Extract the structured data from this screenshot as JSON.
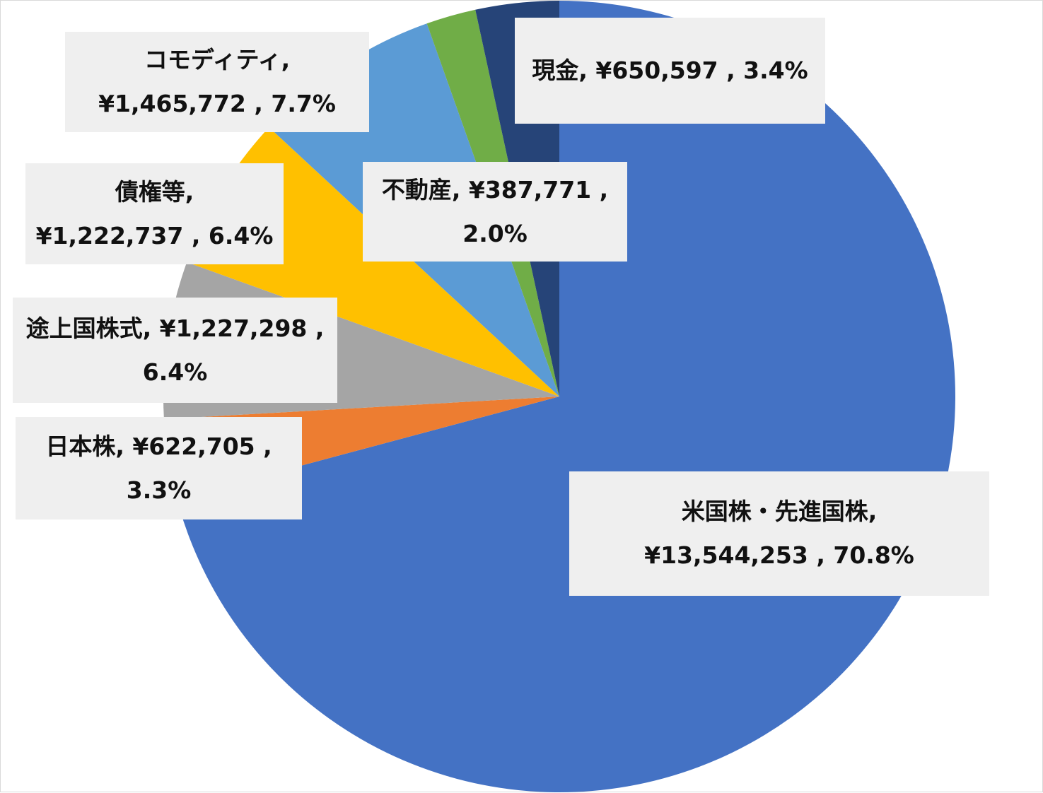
{
  "chart_data": {
    "type": "pie",
    "title": "",
    "legend": "none",
    "slices": [
      {
        "category": "米国株・先進国株",
        "value": 13544253,
        "percent": "70.8%",
        "line1": "米国株・先進国株,",
        "line2": "¥13,544,253 , 70.8%",
        "color": "#4472C4"
      },
      {
        "category": "日本株",
        "value": 622705,
        "percent": "3.3%",
        "line1": "日本株, ¥622,705 ,",
        "line2": "3.3%",
        "color": "#ED7D31"
      },
      {
        "category": "途上国株式",
        "value": 1227298,
        "percent": "6.4%",
        "line1": "途上国株式, ¥1,227,298 ,",
        "line2": "6.4%",
        "color": "#A5A5A5"
      },
      {
        "category": "債権等",
        "value": 1222737,
        "percent": "6.4%",
        "line1": "債権等,",
        "line2": "¥1,222,737 , 6.4%",
        "color": "#FFC000"
      },
      {
        "category": "コモディティ",
        "value": 1465772,
        "percent": "7.7%",
        "line1": "コモディティ,",
        "line2": "¥1,465,772 , 7.7%",
        "color": "#5B9BD5"
      },
      {
        "category": "不動産",
        "value": 387771,
        "percent": "2.0%",
        "line1": "不動産, ¥387,771 ,",
        "line2": "2.0%",
        "color": "#70AD47"
      },
      {
        "category": "現金",
        "value": 650597,
        "percent": "3.4%",
        "line1": "現金, ¥650,597 , 3.4%",
        "line2": "",
        "color": "#264478"
      }
    ]
  }
}
